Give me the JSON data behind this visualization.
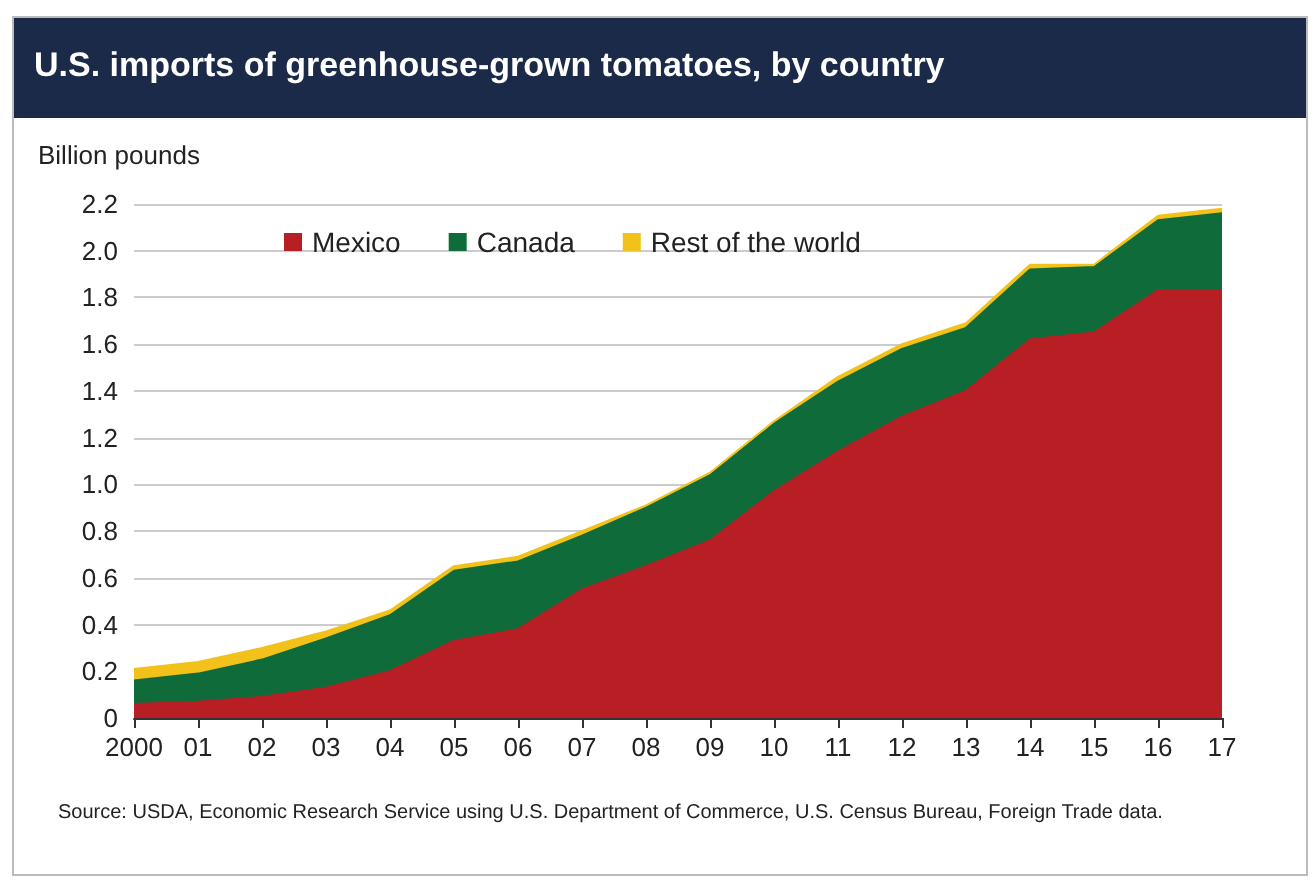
{
  "chart_data": {
    "type": "area",
    "stacked": true,
    "title": "U.S. imports of greenhouse-grown tomatoes, by country",
    "ylabel": "Billion pounds",
    "categories": [
      "2000",
      "01",
      "02",
      "03",
      "04",
      "05",
      "06",
      "07",
      "08",
      "09",
      "10",
      "11",
      "12",
      "13",
      "14",
      "15",
      "16",
      "17"
    ],
    "series": [
      {
        "name": "Mexico",
        "color": "#b81f25",
        "values": [
          0.06,
          0.07,
          0.09,
          0.13,
          0.2,
          0.33,
          0.38,
          0.55,
          0.65,
          0.76,
          0.97,
          1.14,
          1.29,
          1.4,
          1.62,
          1.65,
          1.83,
          1.83
        ]
      },
      {
        "name": "Canada",
        "color": "#0f6b3a",
        "values": [
          0.1,
          0.12,
          0.16,
          0.21,
          0.24,
          0.3,
          0.29,
          0.23,
          0.25,
          0.28,
          0.29,
          0.3,
          0.29,
          0.27,
          0.3,
          0.28,
          0.3,
          0.33
        ]
      },
      {
        "name": "Rest of the world",
        "color": "#f2c21b",
        "values": [
          0.05,
          0.05,
          0.05,
          0.03,
          0.02,
          0.02,
          0.02,
          0.02,
          0.01,
          0.01,
          0.01,
          0.02,
          0.02,
          0.02,
          0.02,
          0.01,
          0.02,
          0.02
        ]
      }
    ],
    "ylim": [
      0,
      2.2
    ],
    "yticks": [
      {
        "value": 0,
        "label": "0"
      },
      {
        "value": 0.2,
        "label": "0.2"
      },
      {
        "value": 0.4,
        "label": "0.4"
      },
      {
        "value": 0.6,
        "label": "0.6"
      },
      {
        "value": 0.8,
        "label": "0.8"
      },
      {
        "value": 1,
        "label": "1.0"
      },
      {
        "value": 1.2,
        "label": "1.2"
      },
      {
        "value": 1.4,
        "label": "1.4"
      },
      {
        "value": 1.6,
        "label": "1.6"
      },
      {
        "value": 1.8,
        "label": "1.8"
      },
      {
        "value": 2,
        "label": "2.0"
      },
      {
        "value": 2.2,
        "label": "2.2"
      }
    ],
    "grid": "y",
    "legend": "top left",
    "annotations": [
      "Source: USDA, Economic Research Service using U.S. Department of Commerce, U.S. Census Bureau, Foreign Trade data."
    ]
  }
}
